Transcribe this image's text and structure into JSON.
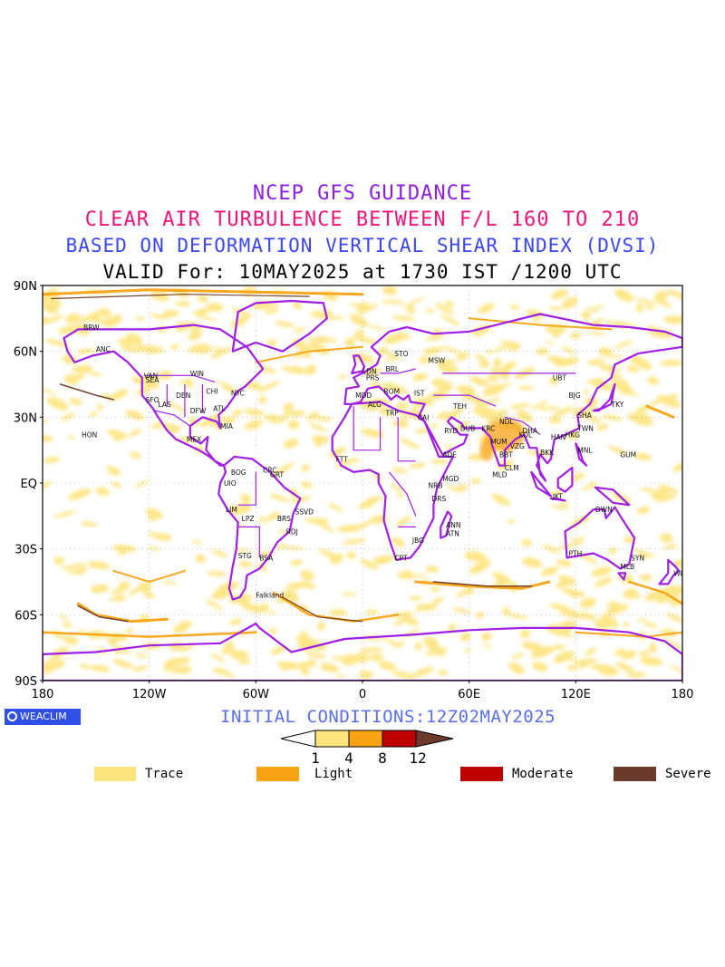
{
  "titles": {
    "line1": "NCEP GFS GUIDANCE",
    "line2": "CLEAR AIR TURBULENCE BETWEEN F/L 160 TO 210",
    "line3": "BASED ON DEFORMATION VERTICAL SHEAR INDEX (DVSI)",
    "line4": "VALID For: 10MAY2025 at 1730 IST /1200 UTC"
  },
  "colors": {
    "line1": "#8c1ee6",
    "line2": "#f0147a",
    "line3": "#3c46f0",
    "line4": "#000000",
    "coast": "#a01ee6",
    "trace": "#fde47c",
    "light": "#f9a212",
    "moderate": "#c00000",
    "severe": "#6b3a2a",
    "init": "#5a6ef0",
    "brand_bg": "#2f4fe8"
  },
  "map": {
    "lat_labels": [
      "90N",
      "60N",
      "30N",
      "EQ",
      "30S",
      "60S",
      "90S"
    ],
    "lon_labels": [
      "180",
      "120W",
      "60W",
      "0",
      "60E",
      "120E",
      "180"
    ],
    "stations": [
      {
        "t": "ANC",
        "lon": -150,
        "lat": 61
      },
      {
        "t": "BRW",
        "lon": -157,
        "lat": 71
      },
      {
        "t": "VAN",
        "lon": -123,
        "lat": 49
      },
      {
        "t": "SEA",
        "lon": -122,
        "lat": 47
      },
      {
        "t": "WIN",
        "lon": -97,
        "lat": 50
      },
      {
        "t": "CHI",
        "lon": -88,
        "lat": 42
      },
      {
        "t": "DEN",
        "lon": -105,
        "lat": 40
      },
      {
        "t": "SFO",
        "lon": -122,
        "lat": 38
      },
      {
        "t": "LAS",
        "lon": -115,
        "lat": 36
      },
      {
        "t": "NYC",
        "lon": -74,
        "lat": 41
      },
      {
        "t": "ATL",
        "lon": -84,
        "lat": 34
      },
      {
        "t": "DFW",
        "lon": -97,
        "lat": 33
      },
      {
        "t": "MIA",
        "lon": -80,
        "lat": 26
      },
      {
        "t": "HON",
        "lon": -158,
        "lat": 22
      },
      {
        "t": "MEX",
        "lon": -99,
        "lat": 20
      },
      {
        "t": "BOG",
        "lon": -74,
        "lat": 5
      },
      {
        "t": "CRC",
        "lon": -56,
        "lat": 6
      },
      {
        "t": "GRT",
        "lon": -52,
        "lat": 4
      },
      {
        "t": "UIO",
        "lon": -78,
        "lat": 0
      },
      {
        "t": "LIM",
        "lon": -77,
        "lat": -12
      },
      {
        "t": "LPZ",
        "lon": -68,
        "lat": -16
      },
      {
        "t": "BRS",
        "lon": -48,
        "lat": -16
      },
      {
        "t": "SSVD",
        "lon": -38,
        "lat": -13
      },
      {
        "t": "RDJ",
        "lon": -43,
        "lat": -22
      },
      {
        "t": "STG",
        "lon": -70,
        "lat": -33
      },
      {
        "t": "BSA",
        "lon": -58,
        "lat": -34
      },
      {
        "t": "Falkland",
        "lon": -60,
        "lat": -51
      },
      {
        "t": "MSW",
        "lon": 37,
        "lat": 56
      },
      {
        "t": "STO",
        "lon": 18,
        "lat": 59
      },
      {
        "t": "BRL",
        "lon": 13,
        "lat": 52
      },
      {
        "t": "LDN",
        "lon": 0,
        "lat": 51
      },
      {
        "t": "PRS",
        "lon": 2,
        "lat": 48
      },
      {
        "t": "MDD",
        "lon": -4,
        "lat": 40
      },
      {
        "t": "ROM",
        "lon": 12,
        "lat": 42
      },
      {
        "t": "IST",
        "lon": 29,
        "lat": 41
      },
      {
        "t": "ALG",
        "lon": 3,
        "lat": 36
      },
      {
        "t": "TRP",
        "lon": 13,
        "lat": 32
      },
      {
        "t": "CAI",
        "lon": 31,
        "lat": 30
      },
      {
        "t": "RYD",
        "lon": 46,
        "lat": 24
      },
      {
        "t": "TEH",
        "lon": 51,
        "lat": 35
      },
      {
        "t": "DUB",
        "lon": 55,
        "lat": 25
      },
      {
        "t": "KRC",
        "lon": 67,
        "lat": 25
      },
      {
        "t": "NDL",
        "lon": 77,
        "lat": 28
      },
      {
        "t": "MUM",
        "lon": 72,
        "lat": 19
      },
      {
        "t": "BBT",
        "lon": 77,
        "lat": 13
      },
      {
        "t": "CLM",
        "lon": 80,
        "lat": 7
      },
      {
        "t": "MLD",
        "lon": 73,
        "lat": 4
      },
      {
        "t": "VZG",
        "lon": 83,
        "lat": 17
      },
      {
        "t": "KOL",
        "lon": 88,
        "lat": 22
      },
      {
        "t": "DHA",
        "lon": 90,
        "lat": 24
      },
      {
        "t": "BKK",
        "lon": 100,
        "lat": 14
      },
      {
        "t": "HAN",
        "lon": 106,
        "lat": 21
      },
      {
        "t": "HKG",
        "lon": 114,
        "lat": 22
      },
      {
        "t": "TWN",
        "lon": 121,
        "lat": 25
      },
      {
        "t": "MNL",
        "lon": 121,
        "lat": 15
      },
      {
        "t": "SHA",
        "lon": 121,
        "lat": 31
      },
      {
        "t": "BJG",
        "lon": 116,
        "lat": 40
      },
      {
        "t": "TKY",
        "lon": 140,
        "lat": 36
      },
      {
        "t": "GUM",
        "lon": 145,
        "lat": 13
      },
      {
        "t": "JKT",
        "lon": 107,
        "lat": -6
      },
      {
        "t": "DWN",
        "lon": 131,
        "lat": -12
      },
      {
        "t": "PTH",
        "lon": 116,
        "lat": -32
      },
      {
        "t": "SYN",
        "lon": 151,
        "lat": -34
      },
      {
        "t": "MLB",
        "lon": 145,
        "lat": -38
      },
      {
        "t": "WLT",
        "lon": 175,
        "lat": -41
      },
      {
        "t": "ADE",
        "lon": 45,
        "lat": 13
      },
      {
        "t": "NRB",
        "lon": 37,
        "lat": -1
      },
      {
        "t": "MGD",
        "lon": 45,
        "lat": 2
      },
      {
        "t": "DRS",
        "lon": 39,
        "lat": -7
      },
      {
        "t": "FTT",
        "lon": -15,
        "lat": 11
      },
      {
        "t": "ANN",
        "lon": 47,
        "lat": -19
      },
      {
        "t": "ATN",
        "lon": 47,
        "lat": -23
      },
      {
        "t": "JBG",
        "lon": 28,
        "lat": -26
      },
      {
        "t": "CPT",
        "lon": 18,
        "lat": -34
      },
      {
        "t": "UBT",
        "lon": 107,
        "lat": 48
      }
    ]
  },
  "initial_conditions": "INITIAL CONDITIONS:12Z02MAY2025",
  "brand": "WEACLIM",
  "scale": {
    "thresholds": [
      "1",
      "4",
      "8",
      "12"
    ]
  },
  "legend": [
    {
      "label": "Trace",
      "color": "#fde47c"
    },
    {
      "label": "Light",
      "color": "#f9a212"
    },
    {
      "label": "Moderate",
      "color": "#c00000"
    },
    {
      "label": "Severe",
      "color": "#6b3a2a"
    }
  ]
}
